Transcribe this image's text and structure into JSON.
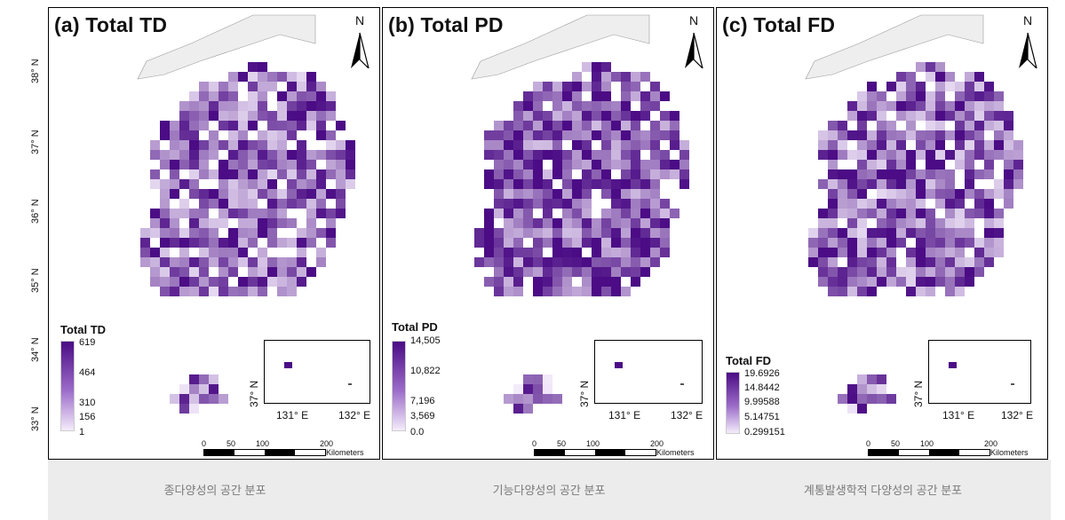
{
  "panels": [
    {
      "title": "(a) Total TD",
      "legend_title": "Total TD",
      "legend_labels": [
        "619",
        "464",
        "310",
        "156",
        "1"
      ]
    },
    {
      "title": "(b) Total PD",
      "legend_title": "Total PD",
      "legend_labels": [
        "14,505",
        "10,822",
        "7,196",
        "3,569",
        "0.0"
      ]
    },
    {
      "title": "(c) Total FD",
      "legend_title": "Total FD",
      "legend_labels": [
        "19.6926",
        "14.8442",
        "9.99588",
        "5.14751",
        "0.299151"
      ]
    }
  ],
  "north_label": "N",
  "lat_labels": [
    "38° N",
    "37° N",
    "36° N",
    "35° N",
    "34° N",
    "33° N"
  ],
  "inset": {
    "lat_label": "37° N",
    "lon_labels": [
      "131° E",
      "132° E"
    ]
  },
  "scalebar": {
    "ticks": [
      "0",
      "50",
      "100",
      "200"
    ],
    "unit": "Kilometers"
  },
  "captions": [
    "종다양성의 공간 분포",
    "기능다양성의 공간 분포",
    "계통발생학적 다양성의 공간 분포"
  ],
  "colors": {
    "dark": "#4b0c85",
    "light": "#f4ecfb",
    "caption_bg": "#ececec"
  }
}
